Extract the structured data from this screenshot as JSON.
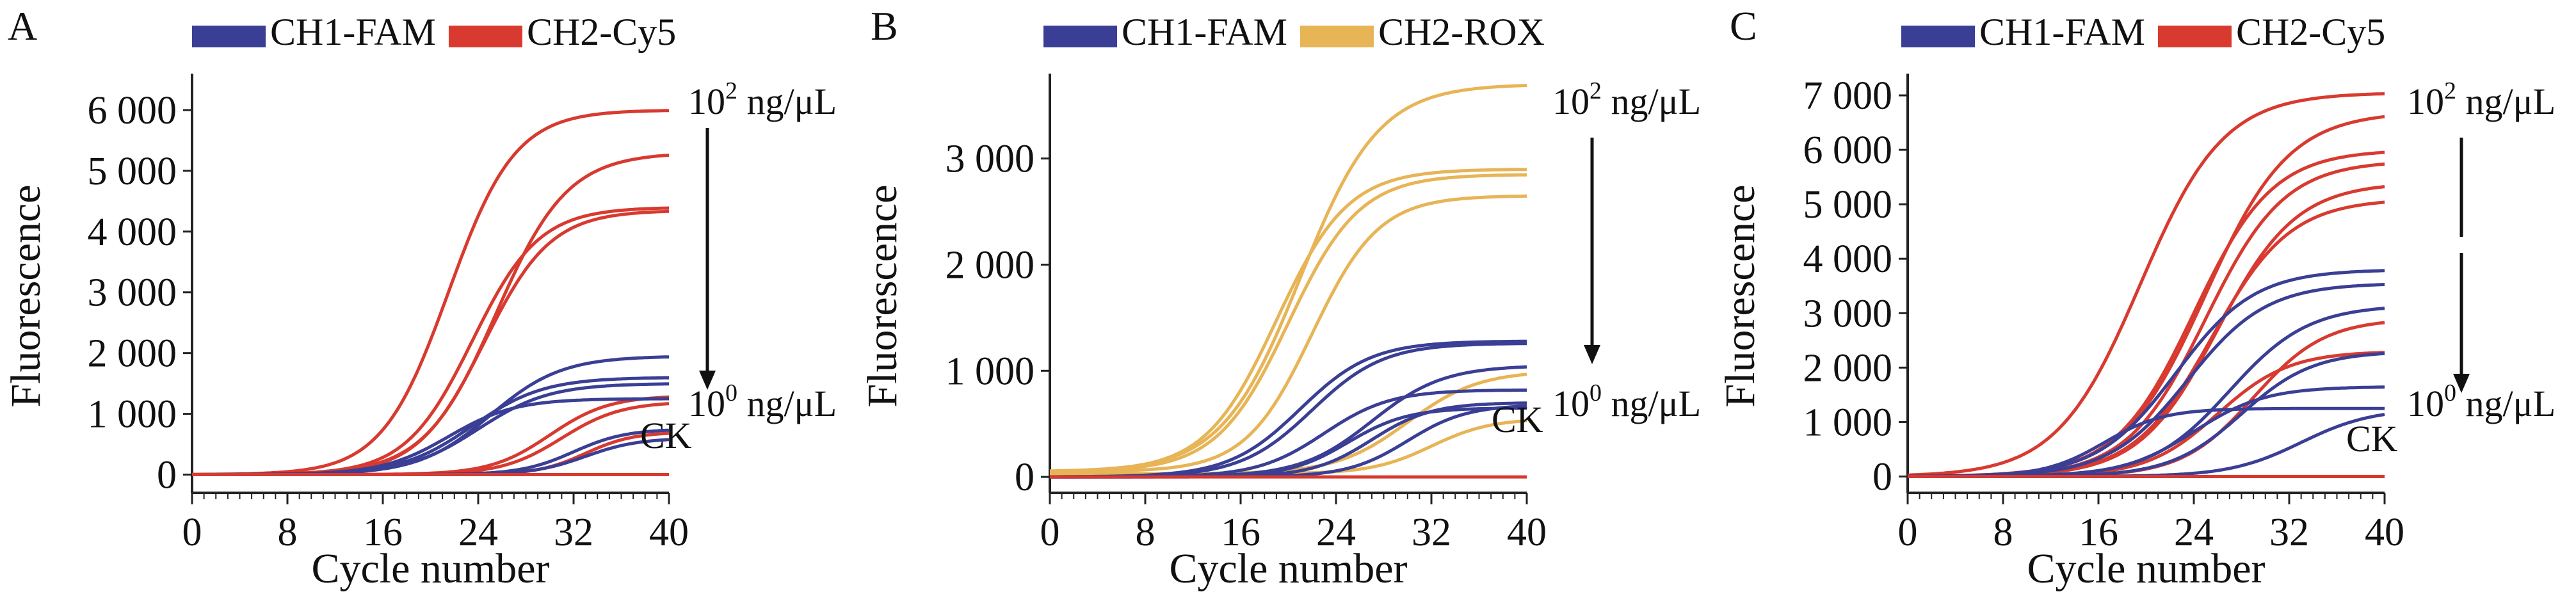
{
  "chart_data": [
    {
      "type": "line",
      "panel": "A",
      "xlabel": "Cycle number",
      "ylabel": "Fluorescence",
      "xlim": [
        0,
        40
      ],
      "ylim": [
        -300,
        6600
      ],
      "xticks": [
        0,
        8,
        16,
        24,
        32,
        40
      ],
      "xtick_labels": [
        "0",
        "8",
        "16",
        "24",
        "32",
        "40"
      ],
      "yticks": [
        0,
        1000,
        2000,
        3000,
        4000,
        5000,
        6000
      ],
      "ytick_labels": [
        "0",
        "1 000",
        "2 000",
        "3 000",
        "4 000",
        "5 000",
        "6 000"
      ],
      "legend": [
        {
          "label": "CH1-FAM",
          "color": "#3a3f95"
        },
        {
          "label": "CH2-Cy5",
          "color": "#d83a30"
        }
      ],
      "legend_position": "top",
      "annotations": {
        "top_label": "10² ng/μL",
        "top_base": "10",
        "top_exp": "2",
        "unit": " ng/μL",
        "bottom_label": "10⁰ ng/μL",
        "bottom_base": "10",
        "bottom_exp": "0",
        "ck_label": "CK"
      },
      "series": [
        {
          "channel": "CH2-Cy5",
          "color": "#d83a30",
          "plateau": 6000,
          "midpoint": 21.5,
          "slope": 2.8
        },
        {
          "channel": "CH2-Cy5",
          "color": "#d83a30",
          "plateau": 5300,
          "midpoint": 25.5,
          "slope": 3.0
        },
        {
          "channel": "CH2-Cy5",
          "color": "#d83a30",
          "plateau": 4400,
          "midpoint": 23.5,
          "slope": 2.8
        },
        {
          "channel": "CH2-Cy5",
          "color": "#d83a30",
          "plateau": 4350,
          "midpoint": 24.5,
          "slope": 2.8
        },
        {
          "channel": "CH2-Cy5",
          "color": "#d83a30",
          "plateau": 1300,
          "midpoint": 30,
          "slope": 2.5
        },
        {
          "channel": "CH2-Cy5",
          "color": "#d83a30",
          "plateau": 1200,
          "midpoint": 31,
          "slope": 2.5
        },
        {
          "channel": "CH2-Cy5",
          "color": "#d83a30",
          "plateau": 700,
          "midpoint": 33,
          "slope": 2.0
        },
        {
          "channel": "CH1-FAM",
          "color": "#3a3f95",
          "plateau": 1950,
          "midpoint": 25,
          "slope": 3.0
        },
        {
          "channel": "CH1-FAM",
          "color": "#3a3f95",
          "plateau": 1600,
          "midpoint": 23.5,
          "slope": 3.0
        },
        {
          "channel": "CH1-FAM",
          "color": "#3a3f95",
          "plateau": 1500,
          "midpoint": 24,
          "slope": 3.0
        },
        {
          "channel": "CH1-FAM",
          "color": "#3a3f95",
          "plateau": 1250,
          "midpoint": 21.5,
          "slope": 2.8
        },
        {
          "channel": "CH1-FAM",
          "color": "#3a3f95",
          "plateau": 750,
          "midpoint": 32,
          "slope": 2.2
        },
        {
          "channel": "CH1-FAM",
          "color": "#3a3f95",
          "plateau": 600,
          "midpoint": 33,
          "slope": 2.2
        },
        {
          "channel": "CH2-Cy5",
          "color": "#d83a30",
          "plateau": 0,
          "midpoint": 30,
          "slope": 2.0
        }
      ]
    },
    {
      "type": "line",
      "panel": "B",
      "xlabel": "Cycle number",
      "ylabel": "Fluorescence",
      "xlim": [
        0,
        40
      ],
      "ylim": [
        -150,
        3800
      ],
      "xticks": [
        0,
        8,
        16,
        24,
        32,
        40
      ],
      "xtick_labels": [
        "0",
        "8",
        "16",
        "24",
        "32",
        "40"
      ],
      "yticks": [
        0,
        1000,
        2000,
        3000
      ],
      "ytick_labels": [
        "0",
        "1 000",
        "2 000",
        "3 000"
      ],
      "legend": [
        {
          "label": "CH1-FAM",
          "color": "#3a3f95"
        },
        {
          "label": "CH2-ROX",
          "color": "#e7b456"
        }
      ],
      "legend_position": "top",
      "annotations": {
        "top_label": "10² ng/μL",
        "top_base": "10",
        "top_exp": "2",
        "unit": " ng/μL",
        "bottom_label": "10⁰ ng/μL",
        "bottom_base": "10",
        "bottom_exp": "0",
        "ck_label": "CK"
      },
      "series": [
        {
          "channel": "CH2-ROX",
          "color": "#e7b456",
          "plateau": 3700,
          "midpoint": 21,
          "slope": 3.3,
          "baseline": 50
        },
        {
          "channel": "CH2-ROX",
          "color": "#e7b456",
          "plateau": 2900,
          "midpoint": 19,
          "slope": 3.0,
          "baseline": 50
        },
        {
          "channel": "CH2-ROX",
          "color": "#e7b456",
          "plateau": 2850,
          "midpoint": 20,
          "slope": 3.0,
          "baseline": 50
        },
        {
          "channel": "CH2-ROX",
          "color": "#e7b456",
          "plateau": 2650,
          "midpoint": 22,
          "slope": 2.8,
          "baseline": 50
        },
        {
          "channel": "CH2-ROX",
          "color": "#e7b456",
          "plateau": 1000,
          "midpoint": 30,
          "slope": 3.0,
          "baseline": 30
        },
        {
          "channel": "CH2-ROX",
          "color": "#e7b456",
          "plateau": 550,
          "midpoint": 32,
          "slope": 2.5,
          "baseline": 30
        },
        {
          "channel": "CH1-FAM",
          "color": "#3a3f95",
          "plateau": 1280,
          "midpoint": 21,
          "slope": 3.0
        },
        {
          "channel": "CH1-FAM",
          "color": "#3a3f95",
          "plateau": 1260,
          "midpoint": 22,
          "slope": 3.0
        },
        {
          "channel": "CH1-FAM",
          "color": "#3a3f95",
          "plateau": 1050,
          "midpoint": 27,
          "slope": 3.0
        },
        {
          "channel": "CH1-FAM",
          "color": "#3a3f95",
          "plateau": 820,
          "midpoint": 23,
          "slope": 2.8
        },
        {
          "channel": "CH1-FAM",
          "color": "#3a3f95",
          "plateau": 700,
          "midpoint": 27,
          "slope": 2.5
        },
        {
          "channel": "CH1-FAM",
          "color": "#3a3f95",
          "plateau": 680,
          "midpoint": 30,
          "slope": 2.5
        },
        {
          "channel": "CH1-FAM",
          "color": "#3a3f95",
          "plateau": 650,
          "midpoint": 25,
          "slope": 2.5
        },
        {
          "channel": "CH2-ROX",
          "color": "#d83a30",
          "plateau": 0,
          "midpoint": 30,
          "slope": 2.0
        }
      ]
    },
    {
      "type": "line",
      "panel": "C",
      "xlabel": "Cycle number",
      "ylabel": "Fluorescence",
      "xlim": [
        0,
        40
      ],
      "ylim": [
        -300,
        7400
      ],
      "xticks": [
        0,
        8,
        16,
        24,
        32,
        40
      ],
      "xtick_labels": [
        "0",
        "8",
        "16",
        "24",
        "32",
        "40"
      ],
      "yticks": [
        0,
        1000,
        2000,
        3000,
        4000,
        5000,
        6000,
        7000
      ],
      "ytick_labels": [
        "0",
        "1 000",
        "2 000",
        "3 000",
        "4 000",
        "5 000",
        "6 000",
        "7 000"
      ],
      "legend": [
        {
          "label": "CH1-FAM",
          "color": "#3a3f95"
        },
        {
          "label": "CH2-Cy5",
          "color": "#d83a30"
        }
      ],
      "legend_position": "top",
      "annotations": {
        "top_label": "10² ng/μL",
        "top_base": "10",
        "top_exp": "2",
        "unit": " ng/μL",
        "bottom_label": "10⁰ ng/μL",
        "bottom_base": "10",
        "bottom_exp": "0",
        "ck_label": "CK"
      },
      "series": [
        {
          "channel": "CH2-Cy5",
          "color": "#d83a30",
          "plateau": 7050,
          "midpoint": 19.5,
          "slope": 3.5
        },
        {
          "channel": "CH2-Cy5",
          "color": "#d83a30",
          "plateau": 6700,
          "midpoint": 25,
          "slope": 3.5
        },
        {
          "channel": "CH2-Cy5",
          "color": "#d83a30",
          "plateau": 6000,
          "midpoint": 24,
          "slope": 3.3
        },
        {
          "channel": "CH2-Cy5",
          "color": "#d83a30",
          "plateau": 5800,
          "midpoint": 25,
          "slope": 3.3
        },
        {
          "channel": "CH2-Cy5",
          "color": "#d83a30",
          "plateau": 5400,
          "midpoint": 26,
          "slope": 3.3
        },
        {
          "channel": "CH2-Cy5",
          "color": "#d83a30",
          "plateau": 5100,
          "midpoint": 25.5,
          "slope": 3.3
        },
        {
          "channel": "CH2-Cy5",
          "color": "#d83a30",
          "plateau": 2900,
          "midpoint": 29,
          "slope": 3.0
        },
        {
          "channel": "CH2-Cy5",
          "color": "#d83a30",
          "plateau": 2300,
          "midpoint": 26,
          "slope": 3.0
        },
        {
          "channel": "CH1-FAM",
          "color": "#3a3f95",
          "plateau": 3800,
          "midpoint": 22.5,
          "slope": 3.3
        },
        {
          "channel": "CH1-FAM",
          "color": "#3a3f95",
          "plateau": 3550,
          "midpoint": 23.5,
          "slope": 3.3
        },
        {
          "channel": "CH1-FAM",
          "color": "#3a3f95",
          "plateau": 3150,
          "midpoint": 27,
          "slope": 3.3
        },
        {
          "channel": "CH1-FAM",
          "color": "#3a3f95",
          "plateau": 2300,
          "midpoint": 28,
          "slope": 3.0
        },
        {
          "channel": "CH1-FAM",
          "color": "#3a3f95",
          "plateau": 1650,
          "midpoint": 24,
          "slope": 3.0
        },
        {
          "channel": "CH1-FAM",
          "color": "#3a3f95",
          "plateau": 1250,
          "midpoint": 16.5,
          "slope": 2.5
        },
        {
          "channel": "CH1-FAM",
          "color": "#3a3f95",
          "plateau": 1250,
          "midpoint": 33,
          "slope": 3.0
        },
        {
          "channel": "CH2-Cy5",
          "color": "#d83a30",
          "plateau": 0,
          "midpoint": 30,
          "slope": 2.0
        }
      ]
    }
  ]
}
